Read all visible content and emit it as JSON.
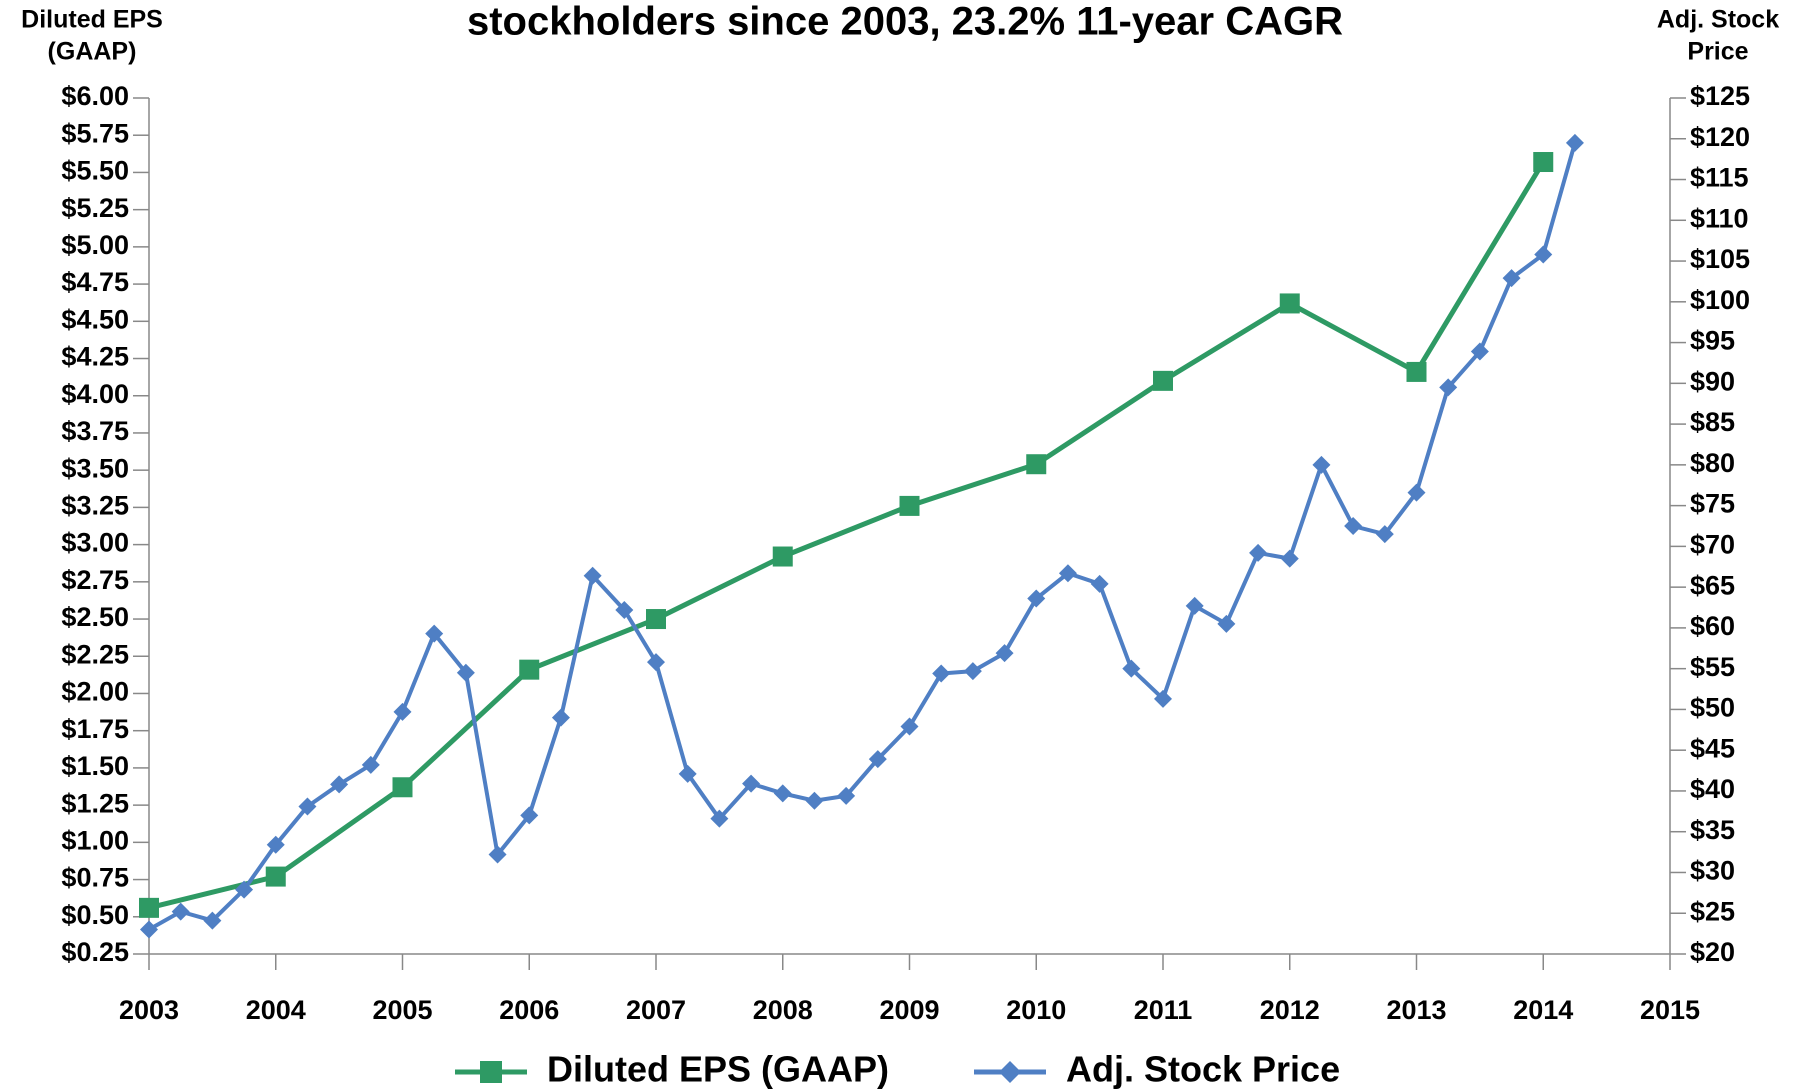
{
  "chart_data": {
    "type": "line",
    "title": "stockholders since 2003, 23.2% 11-year CAGR",
    "y_label": [
      "Diluted EPS",
      "(GAAP)"
    ],
    "y2_label": [
      "Adj. Stock",
      "Price"
    ],
    "xlim": [
      2003,
      2015
    ],
    "xticks": [
      2003,
      2004,
      2005,
      2006,
      2007,
      2008,
      2009,
      2010,
      2011,
      2012,
      2013,
      2014,
      2015
    ],
    "ylim": [
      0.25,
      6.0
    ],
    "yticks": [
      {
        "value": 0.25,
        "label": "$0.25"
      },
      {
        "value": 0.5,
        "label": "$0.50"
      },
      {
        "value": 0.75,
        "label": "$0.75"
      },
      {
        "value": 1.0,
        "label": "$1.00"
      },
      {
        "value": 1.25,
        "label": "$1.25"
      },
      {
        "value": 1.5,
        "label": "$1.50"
      },
      {
        "value": 1.75,
        "label": "$1.75"
      },
      {
        "value": 2.0,
        "label": "$2.00"
      },
      {
        "value": 2.25,
        "label": "$2.25"
      },
      {
        "value": 2.5,
        "label": "$2.50"
      },
      {
        "value": 2.75,
        "label": "$2.75"
      },
      {
        "value": 3.0,
        "label": "$3.00"
      },
      {
        "value": 3.25,
        "label": "$3.25"
      },
      {
        "value": 3.5,
        "label": "$3.50"
      },
      {
        "value": 3.75,
        "label": "$3.75"
      },
      {
        "value": 4.0,
        "label": "$4.00"
      },
      {
        "value": 4.25,
        "label": "$4.25"
      },
      {
        "value": 4.5,
        "label": "$4.50"
      },
      {
        "value": 4.75,
        "label": "$4.75"
      },
      {
        "value": 5.0,
        "label": "$5.00"
      },
      {
        "value": 5.25,
        "label": "$5.25"
      },
      {
        "value": 5.5,
        "label": "$5.50"
      },
      {
        "value": 5.75,
        "label": "$5.75"
      },
      {
        "value": 6.0,
        "label": "$6.00"
      }
    ],
    "y2lim": [
      20,
      125
    ],
    "y2ticks": [
      {
        "value": 20,
        "label": "$20"
      },
      {
        "value": 25,
        "label": "$25"
      },
      {
        "value": 30,
        "label": "$30"
      },
      {
        "value": 35,
        "label": "$35"
      },
      {
        "value": 40,
        "label": "$40"
      },
      {
        "value": 45,
        "label": "$45"
      },
      {
        "value": 50,
        "label": "$50"
      },
      {
        "value": 55,
        "label": "$55"
      },
      {
        "value": 60,
        "label": "$60"
      },
      {
        "value": 65,
        "label": "$65"
      },
      {
        "value": 70,
        "label": "$70"
      },
      {
        "value": 75,
        "label": "$75"
      },
      {
        "value": 80,
        "label": "$80"
      },
      {
        "value": 85,
        "label": "$85"
      },
      {
        "value": 90,
        "label": "$90"
      },
      {
        "value": 95,
        "label": "$95"
      },
      {
        "value": 100,
        "label": "$100"
      },
      {
        "value": 105,
        "label": "$105"
      },
      {
        "value": 110,
        "label": "$110"
      },
      {
        "value": 115,
        "label": "$115"
      },
      {
        "value": 120,
        "label": "$120"
      },
      {
        "value": 125,
        "label": "$125"
      }
    ],
    "series": [
      {
        "name": "Diluted EPS (GAAP)",
        "color": "#2e9a64",
        "marker": "square",
        "x": [
          2003,
          2004,
          2005,
          2006,
          2007,
          2008,
          2009,
          2010,
          2011,
          2012,
          2013,
          2014
        ],
        "values": [
          0.56,
          0.77,
          1.37,
          2.16,
          2.5,
          2.92,
          3.26,
          3.54,
          4.1,
          4.62,
          4.16,
          5.57
        ]
      },
      {
        "name": "Adj. Stock Price",
        "color": "#4f7fc4",
        "marker": "diamond",
        "axis": "y2",
        "x": [
          2003,
          2003.25,
          2003.5,
          2003.75,
          2004,
          2004.25,
          2004.5,
          2004.75,
          2005,
          2005.25,
          2005.5,
          2005.75,
          2006,
          2006.25,
          2006.5,
          2006.75,
          2007,
          2007.25,
          2007.5,
          2007.75,
          2008,
          2008.25,
          2008.5,
          2008.75,
          2009,
          2009.25,
          2009.5,
          2009.75,
          2010,
          2010.25,
          2010.5,
          2010.75,
          2011,
          2011.25,
          2011.5,
          2011.75,
          2012,
          2012.25,
          2012.5,
          2012.75,
          2013,
          2013.25,
          2013.5,
          2013.75,
          2014,
          2014.25
        ],
        "values": [
          23.0,
          25.2,
          24.1,
          27.9,
          33.4,
          38.1,
          40.8,
          43.2,
          49.7,
          59.3,
          54.5,
          32.2,
          37.0,
          49.0,
          66.4,
          62.2,
          55.8,
          42.1,
          36.6,
          40.9,
          39.7,
          38.8,
          39.4,
          43.9,
          47.9,
          54.4,
          54.7,
          56.9,
          63.6,
          66.7,
          65.4,
          55.0,
          51.3,
          62.7,
          60.5,
          69.2,
          68.5,
          80.0,
          72.5,
          71.5,
          76.6,
          89.5,
          93.9,
          102.9,
          105.8,
          119.5
        ]
      }
    ]
  }
}
